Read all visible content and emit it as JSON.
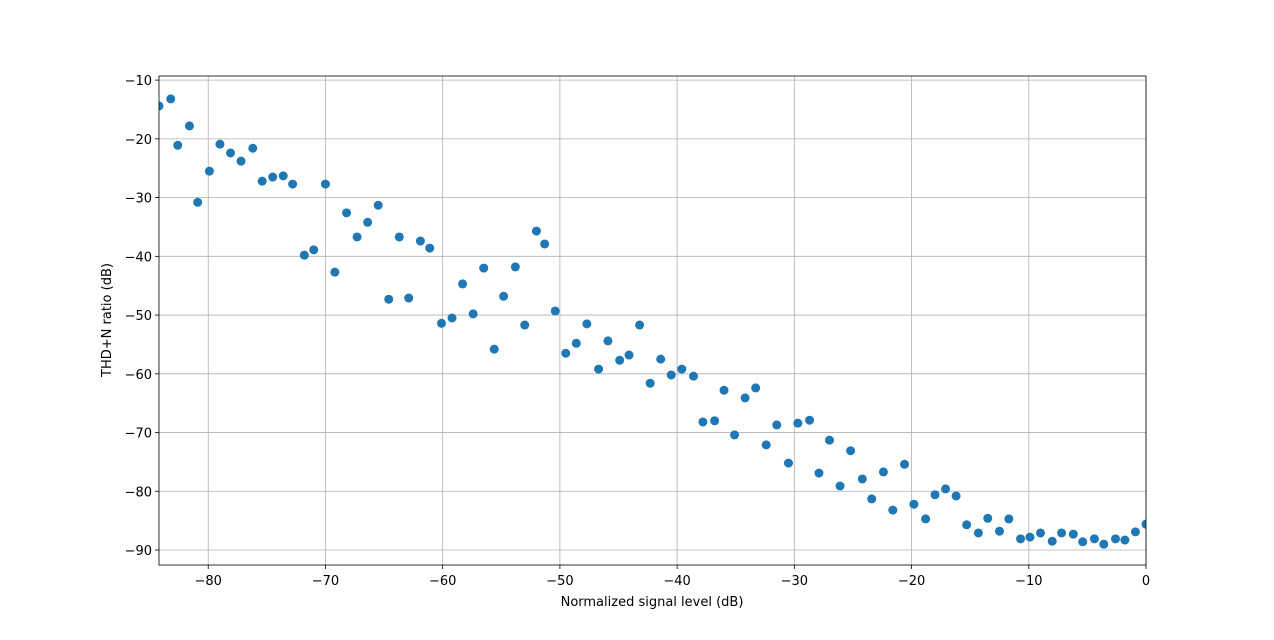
{
  "chart_data": {
    "type": "scatter",
    "xlabel": "Normalized signal level (dB)",
    "ylabel": "THD+N ratio (dB)",
    "color": "#1f77b4",
    "grid": true,
    "xlim": [
      -84.2,
      0
    ],
    "ylim": [
      -92.55,
      -9.3
    ],
    "xticks": [
      {
        "value": -80,
        "label": "−80"
      },
      {
        "value": -70,
        "label": "−70"
      },
      {
        "value": -60,
        "label": "−60"
      },
      {
        "value": -50,
        "label": "−50"
      },
      {
        "value": -40,
        "label": "−40"
      },
      {
        "value": -30,
        "label": "−30"
      },
      {
        "value": -20,
        "label": "−20"
      },
      {
        "value": -10,
        "label": "−10"
      },
      0
    ],
    "yticks": [
      {
        "value": -10,
        "label": "−10"
      },
      {
        "value": -20,
        "label": "−20"
      },
      {
        "value": -30,
        "label": "−30"
      },
      {
        "value": -40,
        "label": "−40"
      },
      {
        "value": -50,
        "label": "−50"
      },
      {
        "value": -60,
        "label": "−60"
      },
      {
        "value": -70,
        "label": "−70"
      },
      {
        "value": -80,
        "label": "−80"
      },
      {
        "value": -90,
        "label": "−90"
      }
    ],
    "x": [
      -84.2,
      -83.2,
      -82.6,
      -81.6,
      -80.9,
      -79.9,
      -79.0,
      -78.1,
      -77.2,
      -76.2,
      -75.4,
      -74.5,
      -73.6,
      -72.8,
      -71.8,
      -71.0,
      -70.0,
      -69.2,
      -68.2,
      -67.3,
      -66.4,
      -65.5,
      -64.6,
      -63.7,
      -62.9,
      -61.9,
      -61.1,
      -60.1,
      -59.2,
      -58.3,
      -57.4,
      -56.5,
      -55.6,
      -54.8,
      -53.8,
      -53.0,
      -52.0,
      -51.3,
      -50.4,
      -49.5,
      -48.6,
      -47.7,
      -46.7,
      -45.9,
      -44.9,
      -44.1,
      -43.2,
      -42.3,
      -41.4,
      -40.5,
      -39.6,
      -38.6,
      -37.8,
      -36.8,
      -36.0,
      -35.1,
      -34.2,
      -33.3,
      -32.4,
      -31.5,
      -30.5,
      -29.7,
      -28.7,
      -27.9,
      -27.0,
      -26.1,
      -25.2,
      -24.2,
      -23.4,
      -22.4,
      -21.6,
      -20.6,
      -19.8,
      -18.8,
      -18.0,
      -17.1,
      -16.2,
      -15.3,
      -14.3,
      -13.5,
      -12.5,
      -11.7,
      -10.7,
      -9.9,
      -9.0,
      -8.0,
      -7.2,
      -6.2,
      -5.4,
      -4.4,
      -3.6,
      -2.6,
      -1.8,
      -0.9,
      0
    ],
    "values": [
      -14.4,
      -13.2,
      -21.1,
      -17.8,
      -30.8,
      -25.5,
      -20.9,
      -22.4,
      -23.8,
      -21.6,
      -27.2,
      -26.5,
      -26.3,
      -27.7,
      -39.8,
      -38.9,
      -27.7,
      -42.7,
      -32.6,
      -36.7,
      -34.2,
      -31.3,
      -47.3,
      -36.7,
      -47.1,
      -37.4,
      -38.6,
      -51.4,
      -50.5,
      -44.7,
      -49.8,
      -42.0,
      -55.8,
      -46.8,
      -41.8,
      -51.7,
      -35.7,
      -37.9,
      -49.3,
      -56.5,
      -54.8,
      -51.5,
      -59.2,
      -54.4,
      -57.7,
      -56.8,
      -51.7,
      -61.6,
      -57.5,
      -60.2,
      -59.2,
      -60.4,
      -68.2,
      -68.0,
      -62.8,
      -70.4,
      -64.1,
      -62.4,
      -72.1,
      -68.7,
      -75.2,
      -68.4,
      -67.9,
      -76.9,
      -71.3,
      -79.1,
      -73.1,
      -77.9,
      -81.3,
      -76.7,
      -83.2,
      -75.4,
      -82.2,
      -84.7,
      -80.6,
      -79.6,
      -80.8,
      -85.7,
      -87.1,
      -84.6,
      -86.8,
      -84.7,
      -88.1,
      -87.8,
      -87.1,
      -88.5,
      -87.1,
      -87.3,
      -88.6,
      -88.1,
      -89.0,
      -88.1,
      -88.3,
      -86.9,
      -85.6
    ]
  }
}
